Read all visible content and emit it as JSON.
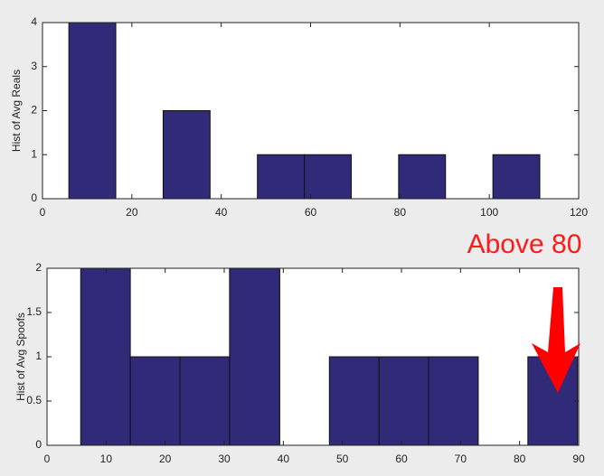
{
  "chart_data": [
    {
      "type": "histogram",
      "ylabel": "Hist of Avg Reals",
      "color": "#302a78",
      "bins": [
        5.9,
        16.4,
        27.0,
        37.5,
        48.1,
        58.6,
        69.1,
        79.7,
        90.2,
        100.8,
        111.3
      ],
      "values": [
        4,
        0,
        2,
        0,
        1,
        1,
        0,
        1,
        0,
        1
      ],
      "xlim": [
        0,
        120
      ],
      "xticks": [
        0,
        20,
        40,
        60,
        80,
        100,
        120
      ],
      "ylim": [
        0,
        4
      ],
      "yticks": [
        0,
        1,
        2,
        3,
        4
      ]
    },
    {
      "type": "histogram",
      "ylabel": "Hist of Avg Spoofs",
      "color": "#302a78",
      "annotation": "Above 80",
      "bins": [
        5.7,
        14.1,
        22.5,
        30.9,
        39.4,
        47.8,
        56.2,
        64.6,
        73.0,
        81.4,
        89.8
      ],
      "values": [
        2,
        1,
        1,
        2,
        0,
        1,
        1,
        1,
        0,
        1
      ],
      "xlim": [
        0,
        90
      ],
      "xticks": [
        0,
        10,
        20,
        30,
        40,
        50,
        60,
        70,
        80,
        90
      ],
      "ylim": [
        0,
        2
      ],
      "yticks": [
        0,
        0.5,
        1,
        1.5,
        2
      ]
    }
  ]
}
